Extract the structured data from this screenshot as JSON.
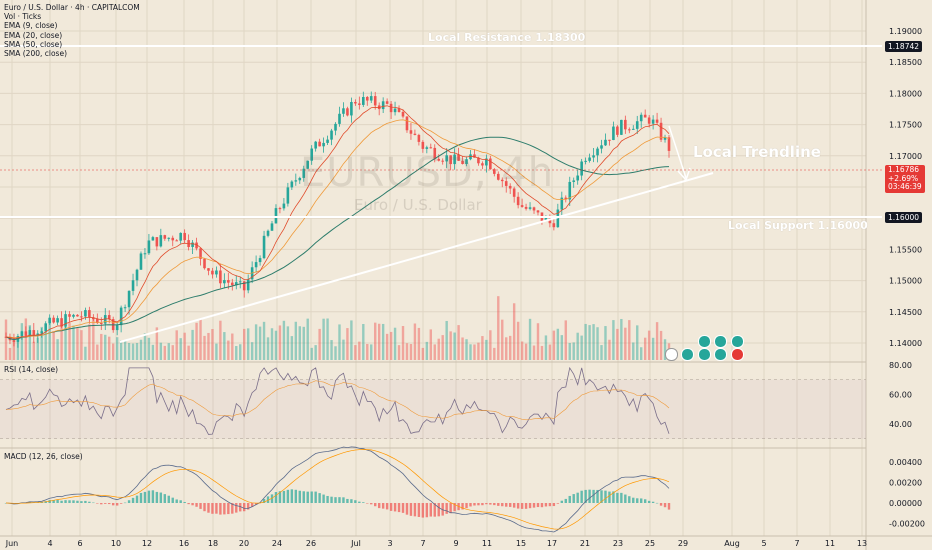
{
  "legend": {
    "title": "Euro / U.S. Dollar · 4h · CAPITALCOM",
    "vol": "Vol · Ticks",
    "ema9": "EMA (9, close)",
    "ema20": "EMA (20, close)",
    "sma50": "SMA (50, close)",
    "sma200": "SMA (200, close)"
  },
  "watermark": {
    "symbol": "EURUSD, 4h",
    "name": "Euro / U.S. Dollar"
  },
  "annotations": {
    "resistance": "Local Resistance 1.18300",
    "support": "Local Support 1.16000",
    "trendline": "Local Trendline"
  },
  "price_axis": [
    "1.19000",
    "1.18500",
    "1.18000",
    "1.17500",
    "1.17000",
    "1.16500",
    "1.16000",
    "1.15500",
    "1.15000",
    "1.14500",
    "1.14000"
  ],
  "tags": {
    "resistance": "1.18742",
    "support": "1.16000",
    "price": "1.16786",
    "change": "+2.69%",
    "countdown": "03:46:39"
  },
  "rsi": {
    "label": "RSI (14, close)",
    "axis": [
      "80.00",
      "60.00",
      "40.00"
    ]
  },
  "macd": {
    "label": "MACD (12, 26, close)",
    "axis": [
      "0.00400",
      "0.00200",
      "0.00000",
      "-0.00200"
    ]
  },
  "time_axis": [
    "Jun",
    "4",
    "6",
    "10",
    "12",
    "16",
    "18",
    "20",
    "24",
    "26",
    "Jul",
    "3",
    "7",
    "9",
    "11",
    "15",
    "17",
    "21",
    "23",
    "25",
    "29",
    "Aug",
    "5",
    "7",
    "11",
    "13"
  ],
  "colors": {
    "bg": "#f1e9da",
    "up": "#26a69a",
    "down": "#ef5350",
    "ema9": "#e04b2b",
    "ema20": "#ef9a3a",
    "sma50": "#2e7d6c",
    "rsi": "#7a6e8a",
    "macd": "#2962ff",
    "signal": "#ff9800"
  },
  "chart_data": {
    "type": "candlestick",
    "symbol": "EURUSD",
    "timeframe": "4h",
    "ylim": [
      1.1375,
      1.1925
    ],
    "x": [
      "Jun",
      "4",
      "6",
      "10",
      "12",
      "16",
      "18",
      "20",
      "24",
      "26",
      "Jul",
      "3",
      "7",
      "9",
      "11",
      "15",
      "17",
      "21",
      "23",
      "25",
      "29"
    ],
    "close": [
      1.141,
      1.143,
      1.1445,
      1.143,
      1.156,
      1.1575,
      1.151,
      1.1485,
      1.161,
      1.1705,
      1.179,
      1.178,
      1.1715,
      1.169,
      1.1695,
      1.162,
      1.159,
      1.17,
      1.1745,
      1.176,
      1.1679
    ],
    "levels": {
      "resistance": 1.183,
      "support": 1.16,
      "resistance_tag": 1.18742
    },
    "trendline": {
      "from": [
        "4",
        1.1405
      ],
      "to": [
        "29",
        1.1673
      ]
    }
  }
}
